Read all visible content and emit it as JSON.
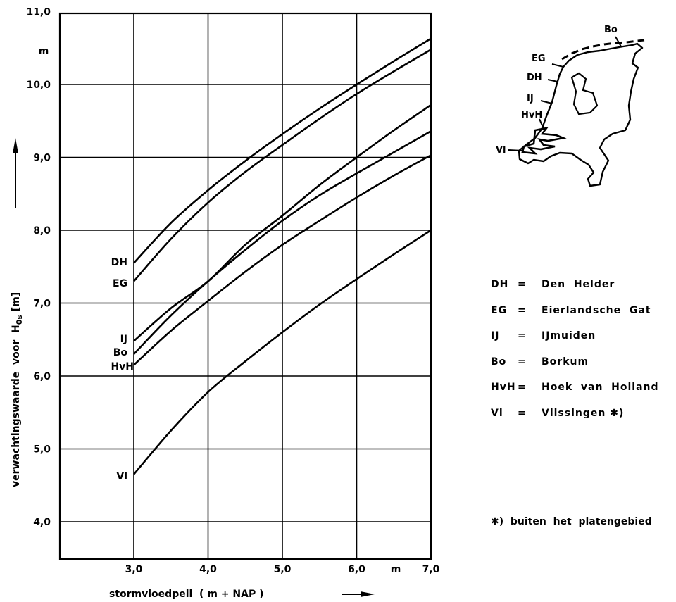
{
  "chart_data": {
    "type": "line",
    "xlabel": "stormvloedpeil  ( m + NAP )",
    "ylabel": "verwachtingswaarde  voor  H",
    "ylabel_sub": "0s",
    "ylabel_unit": " [m]",
    "x_unit": "m",
    "y_unit": "m",
    "xlim": [
      2.0,
      7.0
    ],
    "ylim": [
      3.5,
      11.0
    ],
    "x_ticks": [
      {
        "v": 3.0,
        "label": "3,0"
      },
      {
        "v": 4.0,
        "label": "4,0"
      },
      {
        "v": 5.0,
        "label": "5,0"
      },
      {
        "v": 6.0,
        "label": "6,0"
      },
      {
        "v": 7.0,
        "label": "7,0"
      }
    ],
    "y_ticks": [
      {
        "v": 4.0,
        "label": "4,0"
      },
      {
        "v": 5.0,
        "label": "5,0"
      },
      {
        "v": 6.0,
        "label": "6,0"
      },
      {
        "v": 7.0,
        "label": "7,0"
      },
      {
        "v": 8.0,
        "label": "8,0"
      },
      {
        "v": 9.0,
        "label": "9,0"
      },
      {
        "v": 10.0,
        "label": "10,0"
      },
      {
        "v": 11.0,
        "label": "11,0"
      }
    ],
    "grid": true,
    "series": [
      {
        "name": "DH",
        "x": [
          3.0,
          3.5,
          4.0,
          4.5,
          5.0,
          5.5,
          6.0,
          6.5,
          7.0
        ],
        "y": [
          7.55,
          8.1,
          8.55,
          8.95,
          9.32,
          9.67,
          10.0,
          10.32,
          10.63
        ]
      },
      {
        "name": "EG",
        "x": [
          3.0,
          3.5,
          4.0,
          4.5,
          5.0,
          5.5,
          6.0,
          6.5,
          7.0
        ],
        "y": [
          7.3,
          7.88,
          8.38,
          8.8,
          9.17,
          9.53,
          9.87,
          10.18,
          10.48
        ]
      },
      {
        "name": "IJ",
        "x": [
          3.0,
          3.5,
          4.0,
          4.5,
          5.0,
          5.5,
          6.0,
          6.5,
          7.0
        ],
        "y": [
          6.48,
          6.93,
          7.3,
          7.8,
          8.2,
          8.62,
          9.0,
          9.37,
          9.72
        ]
      },
      {
        "name": "Bo",
        "x": [
          3.0,
          3.5,
          4.0,
          4.5,
          5.0,
          5.5,
          6.0,
          6.5,
          7.0
        ],
        "y": [
          6.3,
          6.83,
          7.3,
          7.73,
          8.13,
          8.48,
          8.78,
          9.07,
          9.36
        ]
      },
      {
        "name": "HvH",
        "x": [
          3.0,
          3.5,
          4.0,
          4.5,
          5.0,
          5.5,
          6.0,
          6.5,
          7.0
        ],
        "y": [
          6.15,
          6.62,
          7.03,
          7.43,
          7.8,
          8.13,
          8.45,
          8.75,
          9.03
        ]
      },
      {
        "name": "Vl",
        "x": [
          3.0,
          3.5,
          4.0,
          4.5,
          5.0,
          5.5,
          6.0,
          6.5,
          7.0
        ],
        "y": [
          4.65,
          5.25,
          5.78,
          6.2,
          6.6,
          6.98,
          7.33,
          7.67,
          8.0
        ]
      }
    ]
  },
  "legend": {
    "items": [
      {
        "abbr": "DH",
        "eq": "=",
        "name": "Den  Helder"
      },
      {
        "abbr": "EG",
        "eq": "=",
        "name": "Eierlandsche  Gat"
      },
      {
        "abbr": "IJ",
        "eq": "=",
        "name": "IJmuiden"
      },
      {
        "abbr": "Bo",
        "eq": "=",
        "name": "Borkum"
      },
      {
        "abbr": "HvH",
        "eq": "=",
        "name": "Hoek  van  Holland"
      },
      {
        "abbr": "Vl",
        "eq": "=",
        "name": "Vlissingen ✱)"
      }
    ],
    "footnote": "✱)  buiten  het  platengebied"
  },
  "map": {
    "labels": [
      "Bo",
      "EG",
      "DH",
      "IJ",
      "HvH",
      "Vl"
    ]
  }
}
